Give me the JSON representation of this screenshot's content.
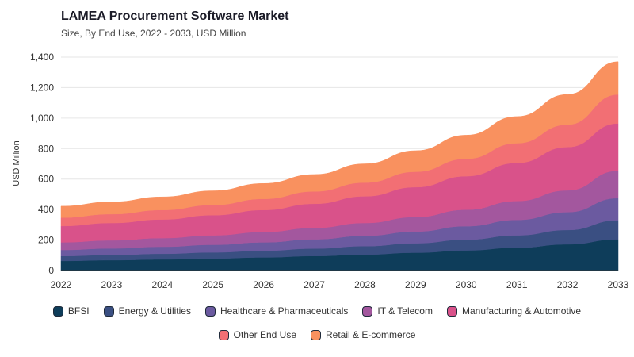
{
  "title": "LAMEA Procurement Software Market",
  "subtitle": "Size, By End Use, 2022 - 2033, USD Million",
  "chart_data": {
    "type": "area",
    "stacked": true,
    "title": "LAMEA Procurement Software Market",
    "subtitle": "Size, By End Use, 2022 - 2033, USD Million",
    "xlabel": "",
    "ylabel": "USD Million",
    "ylim": [
      0,
      1400
    ],
    "yticks": [
      0,
      200,
      400,
      600,
      800,
      1000,
      1200,
      1400
    ],
    "ytick_labels": [
      "0",
      "200",
      "400",
      "600",
      "800",
      "1,000",
      "1,200",
      "1,400"
    ],
    "grid": true,
    "legend_position": "bottom",
    "x": [
      "2022",
      "2023",
      "2024",
      "2025",
      "2026",
      "2027",
      "2028",
      "2029",
      "2030",
      "2031",
      "2032",
      "2033"
    ],
    "series": [
      {
        "name": "BFSI",
        "color": "#0e3d5a",
        "values": [
          63,
          68,
          73,
          79,
          86,
          95,
          105,
          117,
          132,
          150,
          172,
          205
        ]
      },
      {
        "name": "Energy & Utilities",
        "color": "#3a4f82",
        "values": [
          32,
          34,
          37,
          40,
          44,
          49,
          55,
          62,
          71,
          81,
          94,
          125
        ]
      },
      {
        "name": "Healthcare & Pharmaceuticals",
        "color": "#6b5aa0",
        "values": [
          40,
          43,
          46,
          50,
          55,
          61,
          68,
          77,
          88,
          101,
          117,
          145
        ]
      },
      {
        "name": "IT & Telecom",
        "color": "#a3579e",
        "values": [
          50,
          53,
          57,
          62,
          68,
          75,
          84,
          95,
          108,
          124,
          143,
          180
        ]
      },
      {
        "name": "Manufacturing & Automotive",
        "color": "#d9528a",
        "values": [
          107,
          114,
          122,
          132,
          144,
          158,
          175,
          196,
          220,
          250,
          284,
          310
        ]
      },
      {
        "name": "Other End Use",
        "color": "#f26f74",
        "values": [
          55,
          58,
          62,
          67,
          73,
          81,
          90,
          101,
          114,
          129,
          147,
          190
        ]
      },
      {
        "name": "Retail & E-commerce",
        "color": "#f9915f",
        "values": [
          75,
          80,
          86,
          93,
          101,
          111,
          123,
          138,
          155,
          175,
          198,
          215
        ]
      }
    ]
  }
}
